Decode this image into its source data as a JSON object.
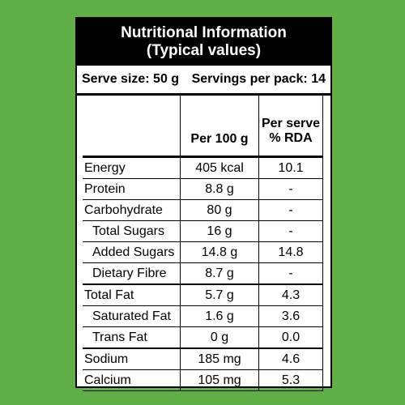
{
  "header": {
    "title_line1": "Nutritional Information",
    "title_line2": "(Typical values)"
  },
  "serve": {
    "serve_size": "Serve size: 50 g",
    "servings": "Servings per pack: 14"
  },
  "columns": {
    "per100": "Per 100 g",
    "rda_line1": "Per serve",
    "rda_line2": "% RDA"
  },
  "rows": [
    {
      "name": "Energy",
      "per100": "405 kcal",
      "rda": "10.1"
    },
    {
      "name": "Protein",
      "per100": "8.8 g",
      "rda": "-"
    },
    {
      "name": "Carbohydrate",
      "per100": "80 g",
      "rda": "-"
    },
    {
      "name": "Total Sugars",
      "per100": "16 g",
      "rda": "-"
    },
    {
      "name": "Added Sugars",
      "per100": "14.8 g",
      "rda": "14.8"
    },
    {
      "name": "Dietary Fibre",
      "per100": "8.7 g",
      "rda": "-"
    },
    {
      "name": "Total Fat",
      "per100": "5.7 g",
      "rda": "4.3"
    },
    {
      "name": "Saturated Fat",
      "per100": "1.6 g",
      "rda": "3.6"
    },
    {
      "name": "Trans Fat",
      "per100": "0 g",
      "rda": "0.0"
    },
    {
      "name": "Sodium",
      "per100": "185 mg",
      "rda": "4.6"
    },
    {
      "name": "Calcium",
      "per100": "105 mg",
      "rda": "5.3"
    }
  ],
  "colors": {
    "background": "#5fae46",
    "header": "#000000",
    "panel": "#ffffff"
  }
}
